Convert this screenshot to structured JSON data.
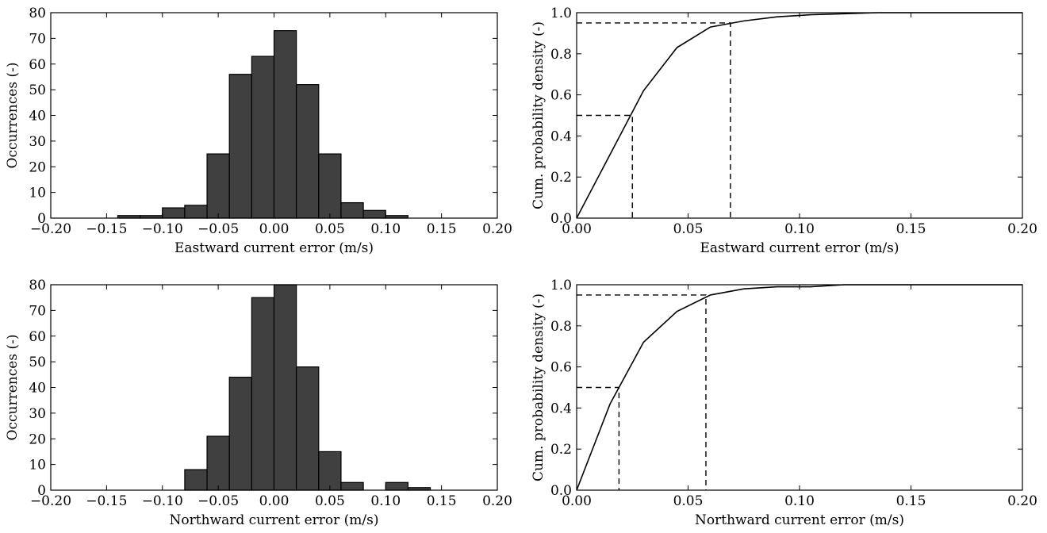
{
  "chart_data": [
    {
      "id": "hist-east",
      "type": "bar",
      "title": "",
      "xlabel": "Eastward current error (m/s)",
      "ylabel": "Occurrences (-)",
      "xlim": [
        -0.2,
        0.2
      ],
      "ylim": [
        0,
        80
      ],
      "xticks": [
        -0.2,
        -0.15,
        -0.1,
        -0.05,
        0.0,
        0.05,
        0.1,
        0.15,
        0.2
      ],
      "xtick_labels": [
        "−0.20",
        "−0.15",
        "−0.10",
        "−0.05",
        "0.00",
        "0.05",
        "0.10",
        "0.15",
        "0.20"
      ],
      "yticks": [
        0,
        10,
        20,
        30,
        40,
        50,
        60,
        70,
        80
      ],
      "ytick_labels": [
        "0",
        "10",
        "20",
        "30",
        "40",
        "50",
        "60",
        "70",
        "80"
      ],
      "bin_width": 0.02,
      "bin_starts": [
        -0.14,
        -0.12,
        -0.1,
        -0.08,
        -0.06,
        -0.04,
        -0.02,
        0.0,
        0.02,
        0.04,
        0.06,
        0.08,
        0.1
      ],
      "values": [
        1,
        1,
        4,
        5,
        25,
        56,
        63,
        73,
        52,
        25,
        6,
        3,
        1
      ],
      "bar_color": "#404040",
      "grid": false
    },
    {
      "id": "cdf-east",
      "type": "line",
      "title": "",
      "xlabel": "Eastward current error (m/s)",
      "ylabel": "Cum. probability density (-)",
      "xlim": [
        0,
        0.2
      ],
      "ylim": [
        0,
        1.0
      ],
      "xticks": [
        0.0,
        0.05,
        0.1,
        0.15,
        0.2
      ],
      "xtick_labels": [
        "0.00",
        "0.05",
        "0.10",
        "0.15",
        "0.20"
      ],
      "yticks": [
        0,
        0.2,
        0.4,
        0.6,
        0.8,
        1.0
      ],
      "ytick_labels": [
        "0.0",
        "0.2",
        "0.4",
        "0.6",
        "0.8",
        "1.0"
      ],
      "x": [
        0,
        0.015,
        0.03,
        0.045,
        0.06,
        0.075,
        0.09,
        0.105,
        0.12,
        0.135,
        0.15,
        0.2
      ],
      "y": [
        0,
        0.31,
        0.62,
        0.83,
        0.93,
        0.96,
        0.98,
        0.99,
        0.995,
        1.0,
        1.0,
        1.0
      ],
      "quantiles": [
        {
          "p": 0.5,
          "x": 0.025
        },
        {
          "p": 0.95,
          "x": 0.069
        }
      ],
      "line_color": "#000000",
      "grid": false
    },
    {
      "id": "hist-north",
      "type": "bar",
      "title": "",
      "xlabel": "Northward current error (m/s)",
      "ylabel": "Occurrences (-)",
      "xlim": [
        -0.2,
        0.2
      ],
      "ylim": [
        0,
        80
      ],
      "xticks": [
        -0.2,
        -0.15,
        -0.1,
        -0.05,
        0.0,
        0.05,
        0.1,
        0.15,
        0.2
      ],
      "xtick_labels": [
        "−0.20",
        "−0.15",
        "−0.10",
        "−0.05",
        "0.00",
        "0.05",
        "0.10",
        "0.15",
        "0.20"
      ],
      "yticks": [
        0,
        10,
        20,
        30,
        40,
        50,
        60,
        70,
        80
      ],
      "ytick_labels": [
        "0",
        "10",
        "20",
        "30",
        "40",
        "50",
        "60",
        "70",
        "80"
      ],
      "bin_width": 0.02,
      "bin_starts": [
        -0.08,
        -0.06,
        -0.04,
        -0.02,
        0.0,
        0.02,
        0.04,
        0.06,
        0.08,
        0.1,
        0.12
      ],
      "values": [
        8,
        21,
        44,
        75,
        80,
        48,
        15,
        3,
        0,
        3,
        1
      ],
      "bar_color": "#404040",
      "grid": false
    },
    {
      "id": "cdf-north",
      "type": "line",
      "title": "",
      "xlabel": "Northward current error (m/s)",
      "ylabel": "Cum. probability density (-)",
      "xlim": [
        0,
        0.2
      ],
      "ylim": [
        0,
        1.0
      ],
      "xticks": [
        0.0,
        0.05,
        0.1,
        0.15,
        0.2
      ],
      "xtick_labels": [
        "0.00",
        "0.05",
        "0.10",
        "0.15",
        "0.20"
      ],
      "yticks": [
        0,
        0.2,
        0.4,
        0.6,
        0.8,
        1.0
      ],
      "ytick_labels": [
        "0.0",
        "0.2",
        "0.4",
        "0.6",
        "0.8",
        "1.0"
      ],
      "x": [
        0,
        0.015,
        0.03,
        0.045,
        0.06,
        0.075,
        0.09,
        0.105,
        0.12,
        0.135,
        0.15,
        0.2
      ],
      "y": [
        0,
        0.42,
        0.72,
        0.87,
        0.95,
        0.98,
        0.99,
        0.99,
        1.0,
        1.0,
        1.0,
        1.0
      ],
      "quantiles": [
        {
          "p": 0.5,
          "x": 0.019
        },
        {
          "p": 0.95,
          "x": 0.058
        }
      ],
      "line_color": "#000000",
      "grid": false
    }
  ]
}
